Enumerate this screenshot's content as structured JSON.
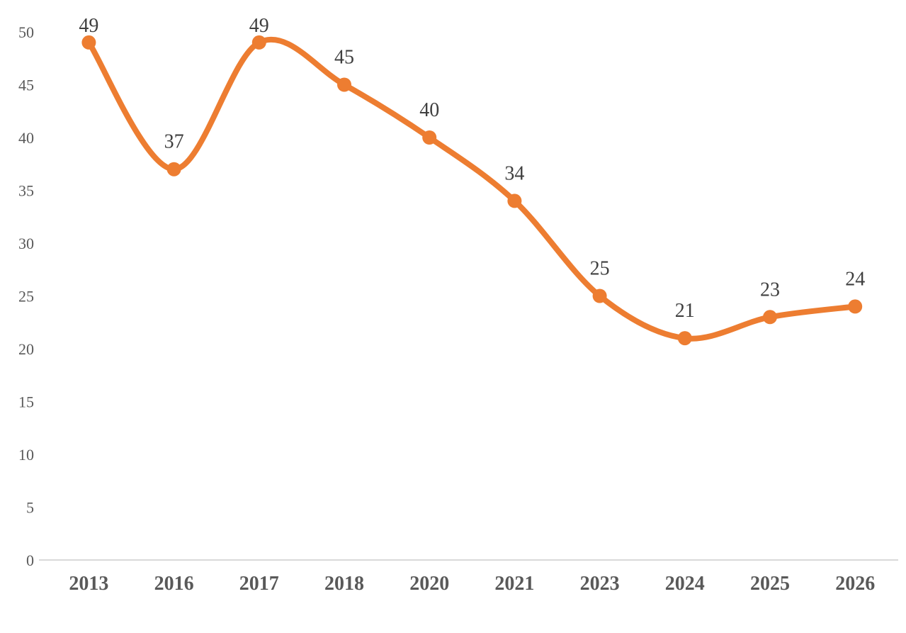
{
  "chart_data": {
    "type": "line",
    "title": "",
    "xlabel": "",
    "ylabel": "",
    "categories": [
      "2013",
      "2016",
      "2017",
      "2018",
      "2020",
      "2021",
      "2023",
      "2024",
      "2025",
      "2026"
    ],
    "values": [
      49,
      37,
      49,
      45,
      40,
      34,
      25,
      21,
      23,
      24
    ],
    "data_labels": [
      "49",
      "37",
      "49",
      "45",
      "40",
      "34",
      "25",
      "21",
      "23",
      "24"
    ],
    "y_ticks": [
      0,
      5,
      10,
      15,
      20,
      25,
      30,
      35,
      40,
      45,
      50
    ],
    "ylim": [
      0,
      50
    ],
    "smooth": true,
    "grid": false,
    "legend_position": "none",
    "colors": {
      "line": "#ED7D31",
      "marker": "#ED7D31",
      "data_label": "#3F3F3F",
      "tick_label": "#595959",
      "axis_line": "#D9D9D9",
      "background": "#FFFFFF"
    }
  }
}
